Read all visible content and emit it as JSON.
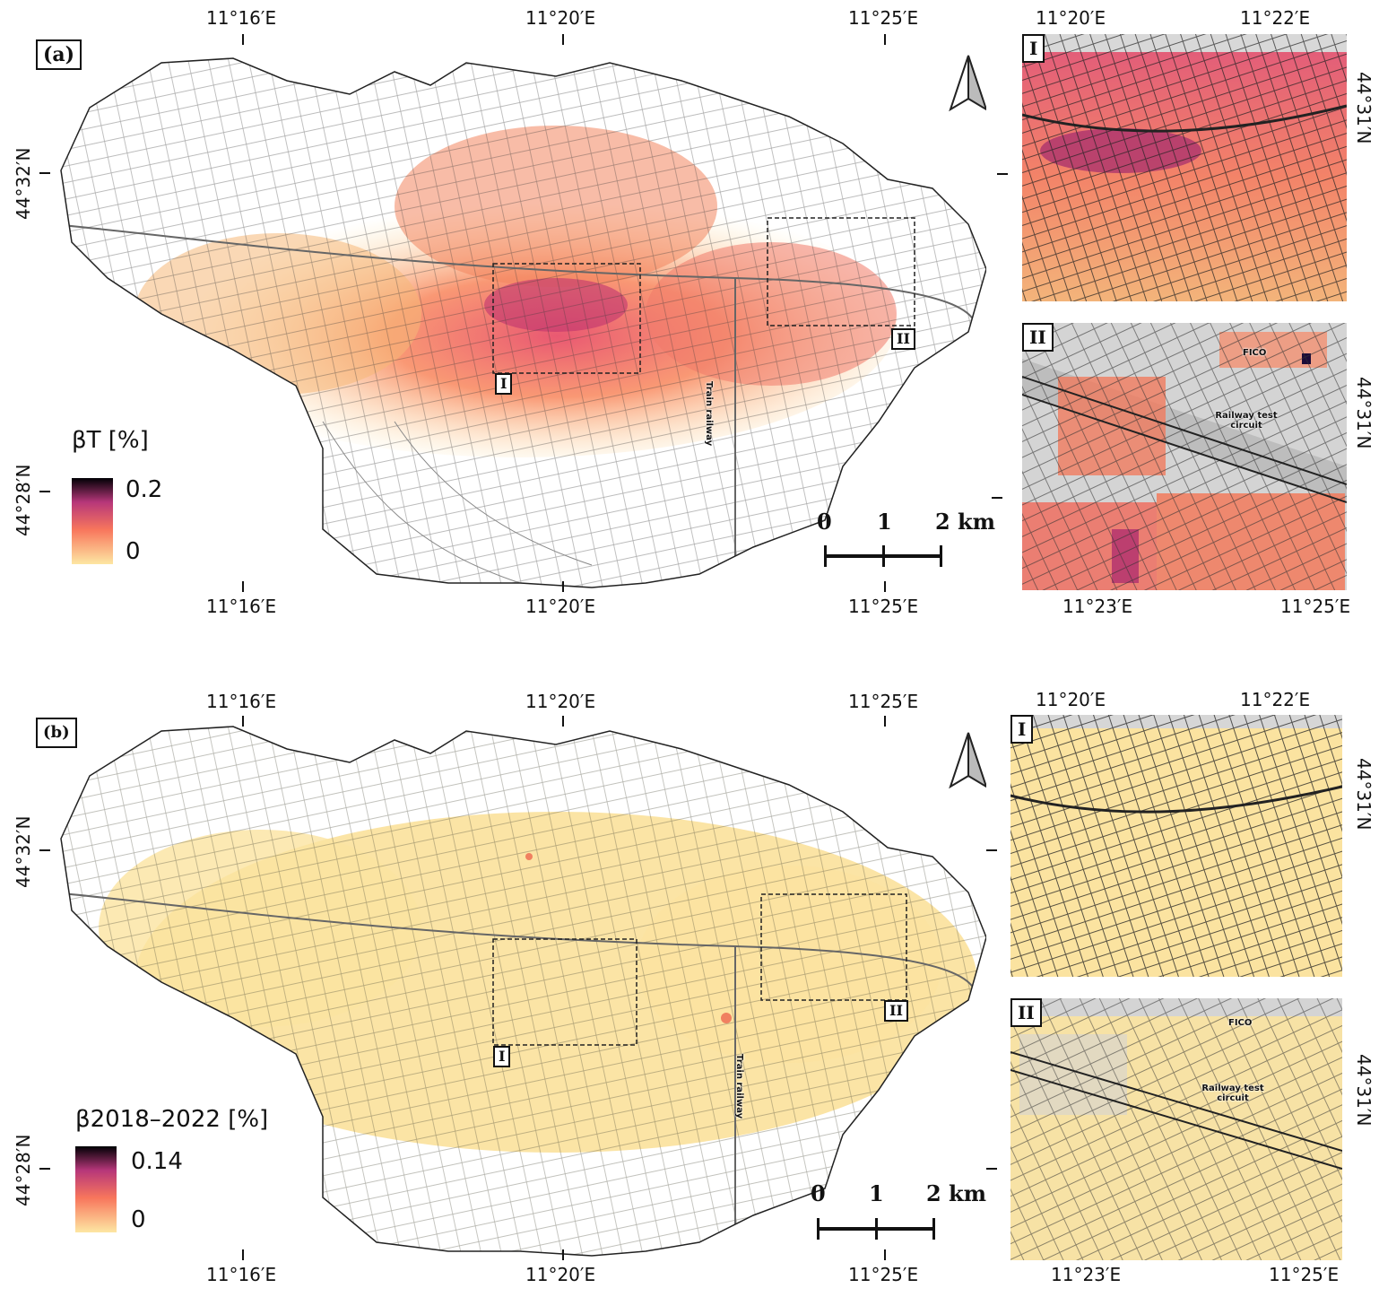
{
  "panel_a": {
    "tag": "(a)",
    "top_ticks": [
      "11°16′E",
      "11°20′E",
      "11°25′E"
    ],
    "bottom_ticks": [
      "11°16′E",
      "11°20′E",
      "11°25′E"
    ],
    "left_ticks": [
      "44°32′N",
      "44°28′N"
    ],
    "legend": {
      "title": "βT [%]",
      "max": "0.2",
      "min": "0"
    },
    "box_labels": [
      "I",
      "II"
    ],
    "railway_label": "Train railway",
    "scale": {
      "l0": "0",
      "l1": "1",
      "l2": "2 km"
    },
    "inset1": {
      "tag": "I",
      "top_ticks": [
        "11°20′E",
        "11°22′E"
      ],
      "right_tick": "44°31′N"
    },
    "inset2": {
      "tag": "II",
      "bottom_ticks": [
        "11°23′E",
        "11°25′E"
      ],
      "right_tick": "44°31′N",
      "fico": "FICO",
      "test_circuit": "Railway test circuit"
    }
  },
  "panel_b": {
    "tag": "(b)",
    "top_ticks": [
      "11°16′E",
      "11°20′E",
      "11°25′E"
    ],
    "bottom_ticks": [
      "11°16′E",
      "11°20′E",
      "11°25′E"
    ],
    "left_ticks": [
      "44°32′N",
      "44°28′N"
    ],
    "legend": {
      "title": "β2018–2022 [%]",
      "max": "0.14",
      "min": "0"
    },
    "box_labels": [
      "I",
      "II"
    ],
    "railway_label": "Train railway",
    "scale": {
      "l0": "0",
      "l1": "1",
      "l2": "2 km"
    },
    "inset1": {
      "tag": "I",
      "top_ticks": [
        "11°20′E",
        "11°22′E"
      ],
      "right_tick": "44°31′N"
    },
    "inset2": {
      "tag": "II",
      "bottom_ticks": [
        "11°23′E",
        "11°25′E"
      ],
      "right_tick": "44°31′N",
      "fico": "FICO",
      "test_circuit": "Railway test circuit"
    }
  },
  "colors": {
    "scale_low": "#fde7a3",
    "scale_mid": "#f8765c",
    "scale_high": "#b7377a",
    "scale_max": "#000004",
    "panel_b_fill": "#fbe3a0"
  }
}
